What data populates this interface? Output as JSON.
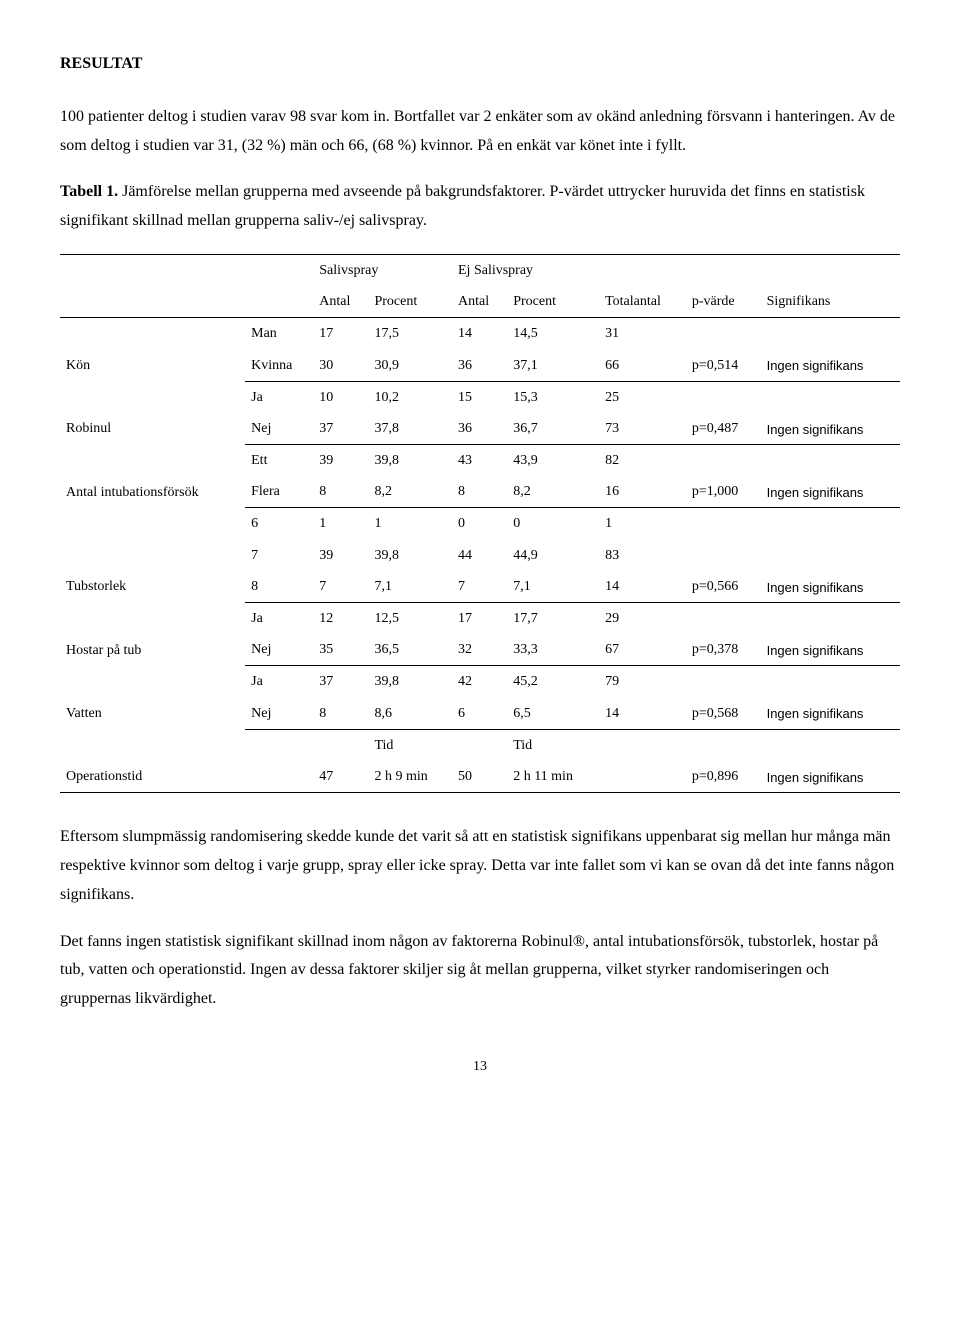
{
  "heading": "RESULTAT",
  "para1": "100 patienter deltog i studien varav 98 svar kom in. Bortfallet var 2 enkäter som av okänd anledning försvann i hanteringen. Av de som deltog i studien var 31, (32 %) män och 66, (68 %) kvinnor. På en enkät var könet inte i fyllt.",
  "table_caption_bold": "Tabell 1.",
  "table_caption_rest": " Jämförelse mellan grupperna med avseende på bakgrundsfaktorer. P-värdet uttrycker huruvida det finns en statistisk signifikant skillnad mellan grupperna saliv-/ej salivspray.",
  "table": {
    "group_headers": {
      "g1": "Salivspray",
      "g2": "Ej Salivspray"
    },
    "col_headers": {
      "c1": "Antal",
      "c2": "Procent",
      "c3": "Antal",
      "c4": "Procent",
      "c5": "Totalantal",
      "c6": "p-värde",
      "c7": "Signifikans"
    },
    "rows": {
      "kon": {
        "label": "Kön",
        "r1": {
          "sub": "Man",
          "a1": "17",
          "p1": "17,5",
          "a2": "14",
          "p2": "14,5",
          "tot": "31",
          "pval": "",
          "sig": ""
        },
        "r2": {
          "sub": "Kvinna",
          "a1": "30",
          "p1": "30,9",
          "a2": "36",
          "p2": "37,1",
          "tot": "66",
          "pval": "p=0,514",
          "sig": "Ingen signifikans"
        }
      },
      "robinul": {
        "label": "Robinul",
        "r1": {
          "sub": "Ja",
          "a1": "10",
          "p1": "10,2",
          "a2": "15",
          "p2": "15,3",
          "tot": "25",
          "pval": "",
          "sig": ""
        },
        "r2": {
          "sub": "Nej",
          "a1": "37",
          "p1": "37,8",
          "a2": "36",
          "p2": "36,7",
          "tot": "73",
          "pval": "p=0,487",
          "sig": "Ingen signifikans"
        }
      },
      "intub": {
        "label": "Antal intubationsförsök",
        "r1": {
          "sub": "Ett",
          "a1": "39",
          "p1": "39,8",
          "a2": "43",
          "p2": "43,9",
          "tot": "82",
          "pval": "",
          "sig": ""
        },
        "r2": {
          "sub": "Flera",
          "a1": "8",
          "p1": "8,2",
          "a2": "8",
          "p2": "8,2",
          "tot": "16",
          "pval": "p=1,000",
          "sig": "Ingen signifikans"
        }
      },
      "tub": {
        "label": "Tubstorlek",
        "r1": {
          "sub": "6",
          "a1": "1",
          "p1": "1",
          "a2": "0",
          "p2": "0",
          "tot": "1",
          "pval": "",
          "sig": ""
        },
        "r2": {
          "sub": "7",
          "a1": "39",
          "p1": "39,8",
          "a2": "44",
          "p2": "44,9",
          "tot": "83",
          "pval": "",
          "sig": ""
        },
        "r3": {
          "sub": "8",
          "a1": "7",
          "p1": "7,1",
          "a2": "7",
          "p2": "7,1",
          "tot": "14",
          "pval": "p=0,566",
          "sig": "Ingen signifikans"
        }
      },
      "hostar": {
        "label": "Hostar på tub",
        "r1": {
          "sub": "Ja",
          "a1": "12",
          "p1": "12,5",
          "a2": "17",
          "p2": "17,7",
          "tot": "29",
          "pval": "",
          "sig": ""
        },
        "r2": {
          "sub": "Nej",
          "a1": "35",
          "p1": "36,5",
          "a2": "32",
          "p2": "33,3",
          "tot": "67",
          "pval": "p=0,378",
          "sig": "Ingen signifikans"
        }
      },
      "vatten": {
        "label": "Vatten",
        "r1": {
          "sub": "Ja",
          "a1": "37",
          "p1": "39,8",
          "a2": "42",
          "p2": "45,2",
          "tot": "79",
          "pval": "",
          "sig": ""
        },
        "r2": {
          "sub": "Nej",
          "a1": "8",
          "p1": "8,6",
          "a2": "6",
          "p2": "6,5",
          "tot": "14",
          "pval": "p=0,568",
          "sig": "Ingen signifikans"
        }
      },
      "optid": {
        "label": "Operationstid",
        "tidlabel1": "Tid",
        "tidlabel2": "Tid",
        "r": {
          "a1": "47",
          "p1": "2 h 9 min",
          "a2": "50",
          "p2": "2 h 11 min",
          "tot": "",
          "pval": "p=0,896",
          "sig": "Ingen signifikans"
        }
      }
    }
  },
  "para2": "Eftersom slumpmässig randomisering skedde kunde det varit så att en statistisk signifikans uppenbarat sig mellan hur många män respektive kvinnor som deltog i varje grupp, spray eller icke spray. Detta var inte fallet som vi kan se ovan då det inte fanns någon signifikans.",
  "para3": "Det fanns ingen statistisk signifikant skillnad inom någon av faktorerna Robinul®, antal intubationsförsök, tubstorlek, hostar på tub, vatten och operationstid. Ingen av dessa faktorer skiljer sig åt mellan grupperna, vilket styrker randomiseringen och gruppernas likvärdighet.",
  "page_number": "13"
}
